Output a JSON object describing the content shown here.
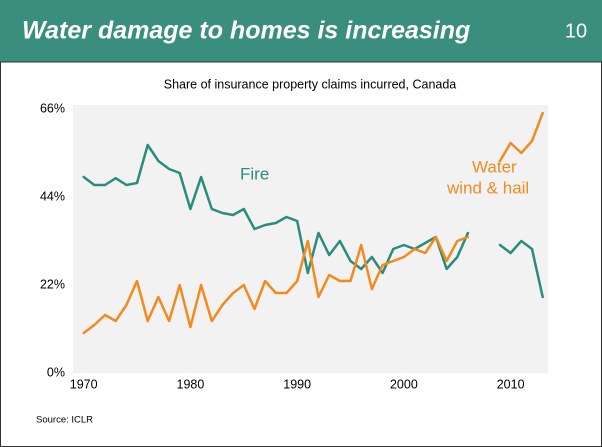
{
  "header": {
    "title": "Water damage to homes is increasing",
    "page_number": "10"
  },
  "source": "Source: ICLR",
  "chart_data": {
    "type": "line",
    "title": "Share of insurance property claims incurred, Canada",
    "x": [
      1970,
      1971,
      1972,
      1973,
      1974,
      1975,
      1976,
      1977,
      1978,
      1979,
      1980,
      1981,
      1982,
      1983,
      1984,
      1985,
      1986,
      1987,
      1988,
      1989,
      1990,
      1991,
      1992,
      1993,
      1994,
      1995,
      1996,
      1997,
      1998,
      1999,
      2000,
      2001,
      2002,
      2003,
      2004,
      2005,
      2006,
      2007,
      2008,
      2009,
      2010,
      2011,
      2012,
      2013
    ],
    "series": [
      {
        "name": "Fire",
        "color": "#2a8c7c",
        "values": [
          49,
          47,
          47,
          48.7,
          47,
          47.5,
          57,
          53,
          51,
          50,
          41,
          49,
          41,
          40,
          39.5,
          41,
          36,
          37,
          37.5,
          39,
          38,
          25,
          35,
          29.5,
          33,
          28,
          26,
          29,
          25,
          31,
          32,
          31,
          32.5,
          34,
          26,
          29,
          35,
          null,
          null,
          32,
          30,
          33,
          31,
          19
        ]
      },
      {
        "name": "Water wind & hail",
        "color": "#f28a1e",
        "values": [
          10,
          12,
          14.5,
          13,
          17,
          23,
          13,
          19,
          13,
          22,
          11.5,
          22,
          13,
          17,
          20,
          22,
          16,
          23,
          20,
          20,
          23,
          33,
          19,
          24.5,
          23,
          23,
          32,
          21,
          27,
          28,
          29,
          31,
          30,
          34,
          28,
          33,
          34,
          null,
          null,
          53,
          57.5,
          55,
          58,
          65
        ]
      }
    ],
    "annotations": [
      {
        "text": "Fire"
      },
      {
        "text": "Water"
      },
      {
        "text": "wind & hail"
      }
    ],
    "xlim": [
      1969,
      2013.5
    ],
    "xticks": [
      1970,
      1980,
      1990,
      2000,
      2010
    ],
    "ylim": [
      0,
      67
    ],
    "yticks": [
      {
        "value": 0,
        "label": "0%"
      },
      {
        "value": 22,
        "label": "22%"
      },
      {
        "value": 44,
        "label": "44%"
      },
      {
        "value": 66,
        "label": "66%"
      }
    ],
    "grid": false
  }
}
